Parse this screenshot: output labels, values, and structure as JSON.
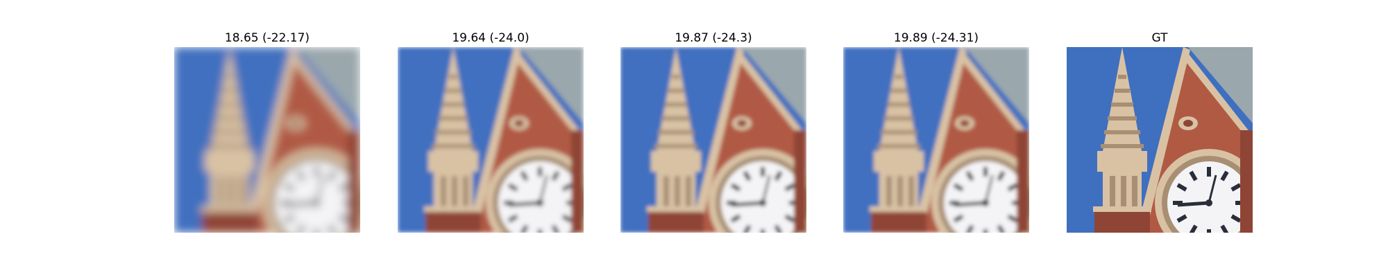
{
  "panels": [
    {
      "caption": "18.65 (-22.17)",
      "blur": 6.5
    },
    {
      "caption": "19.64 (-24.0)",
      "blur": 3.2
    },
    {
      "caption": "19.87 (-24.3)",
      "blur": 3.0
    },
    {
      "caption": "19.89 (-24.31)",
      "blur": 3.0
    },
    {
      "caption": "GT",
      "blur": 0
    }
  ],
  "colors": {
    "sky": "#3f6fbf",
    "brick": "#b05a44",
    "brick_dark": "#8f4535",
    "stone": "#d9c2a4",
    "stone_dark": "#a88f74",
    "roof": "#9aa7ad",
    "clock_face": "#f4f4f6",
    "clock_mark": "#2a2e3a"
  }
}
